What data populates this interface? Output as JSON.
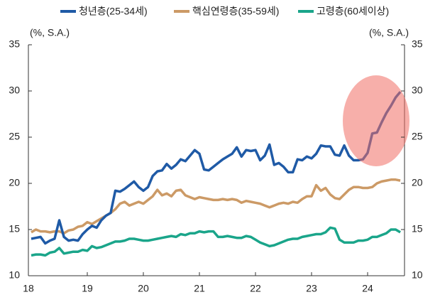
{
  "chart_data": {
    "type": "line",
    "ylabel": "(%, S.A.)",
    "y2label": "(%, S.A.)",
    "categories": [
      "18",
      null,
      null,
      null,
      null,
      null,
      null,
      null,
      null,
      null,
      null,
      null,
      "19",
      null,
      null,
      null,
      null,
      null,
      null,
      null,
      null,
      null,
      null,
      null,
      "20",
      null,
      null,
      null,
      null,
      null,
      null,
      null,
      null,
      null,
      null,
      null,
      "21",
      null,
      null,
      null,
      null,
      null,
      null,
      null,
      null,
      null,
      null,
      null,
      "22",
      null,
      null,
      null,
      null,
      null,
      null,
      null,
      null,
      null,
      null,
      null,
      "23",
      null,
      null,
      null,
      null,
      null,
      null,
      null,
      null,
      null,
      null,
      null,
      "24",
      null,
      null,
      null,
      null,
      null,
      null,
      null
    ],
    "series": [
      {
        "name": "청년층(25-34세)",
        "color": "#1f5aa6",
        "values": [
          14.0,
          14.1,
          14.2,
          13.5,
          13.8,
          14.0,
          16.0,
          14.2,
          13.8,
          13.9,
          13.8,
          14.5,
          15.0,
          15.4,
          15.2,
          16.0,
          16.5,
          16.8,
          19.2,
          19.1,
          19.4,
          19.8,
          20.2,
          19.6,
          19.2,
          19.6,
          20.8,
          21.3,
          21.4,
          22.1,
          21.6,
          22.0,
          22.6,
          22.4,
          23.0,
          23.6,
          23.2,
          21.5,
          21.4,
          21.8,
          22.2,
          22.6,
          22.9,
          23.2,
          23.9,
          22.9,
          23.6,
          23.5,
          23.6,
          22.5,
          23.0,
          24.2,
          22.0,
          22.2,
          21.8,
          21.2,
          21.2,
          22.6,
          22.5,
          22.9,
          22.7,
          23.2,
          24.1,
          24.0,
          24.0,
          23.1,
          23.0,
          24.1,
          23.0,
          22.5,
          22.5,
          22.6,
          23.3,
          25.4,
          25.5,
          26.6,
          27.6,
          28.4,
          29.3,
          29.9
        ]
      },
      {
        "name": "핵심연령층(35-59세)",
        "color": "#cc9a66",
        "values": [
          14.7,
          15.0,
          14.8,
          14.8,
          14.7,
          14.8,
          14.8,
          14.6,
          14.9,
          15.0,
          15.3,
          15.4,
          15.8,
          15.6,
          15.9,
          16.2,
          16.5,
          16.8,
          17.2,
          17.8,
          18.0,
          17.6,
          17.8,
          18.0,
          17.8,
          18.2,
          18.6,
          19.3,
          18.7,
          18.9,
          18.6,
          19.2,
          19.3,
          18.7,
          18.5,
          18.3,
          18.5,
          18.4,
          18.3,
          18.2,
          18.2,
          18.3,
          18.2,
          18.3,
          18.2,
          17.9,
          18.1,
          18.0,
          17.9,
          17.8,
          17.6,
          17.4,
          17.6,
          17.8,
          17.9,
          17.8,
          18.0,
          17.9,
          18.3,
          18.6,
          18.6,
          19.8,
          19.2,
          19.5,
          18.8,
          18.4,
          18.3,
          18.8,
          19.3,
          19.6,
          19.6,
          19.5,
          19.5,
          19.6,
          20.0,
          20.2,
          20.3,
          20.4,
          20.4,
          20.3
        ]
      },
      {
        "name": "고령층(60세이상)",
        "color": "#1aa58a",
        "values": [
          12.2,
          12.3,
          12.3,
          12.2,
          12.5,
          12.6,
          13.0,
          12.4,
          12.5,
          12.6,
          12.6,
          12.8,
          12.7,
          13.2,
          13.0,
          13.1,
          13.3,
          13.5,
          13.7,
          13.7,
          13.8,
          14.0,
          14.0,
          13.9,
          13.8,
          13.8,
          13.9,
          14.0,
          14.1,
          14.2,
          14.3,
          14.2,
          14.5,
          14.4,
          14.6,
          14.6,
          14.8,
          14.7,
          14.8,
          14.8,
          14.2,
          14.2,
          14.3,
          14.2,
          14.1,
          14.1,
          14.3,
          14.2,
          13.9,
          13.6,
          13.4,
          13.2,
          13.3,
          13.5,
          13.7,
          13.9,
          14.0,
          14.0,
          14.2,
          14.3,
          14.4,
          14.5,
          14.5,
          14.7,
          15.2,
          15.1,
          13.9,
          13.6,
          13.6,
          13.6,
          13.8,
          13.8,
          13.9,
          14.2,
          14.2,
          14.4,
          14.6,
          15.0,
          15.0,
          14.7
        ]
      }
    ],
    "ylim": [
      10,
      35
    ],
    "yticks": [
      10,
      15,
      20,
      25,
      30,
      35
    ],
    "y2lim": [
      10,
      35
    ],
    "y2ticks": [
      10,
      15,
      20,
      25,
      30,
      35
    ],
    "grid": false
  }
}
